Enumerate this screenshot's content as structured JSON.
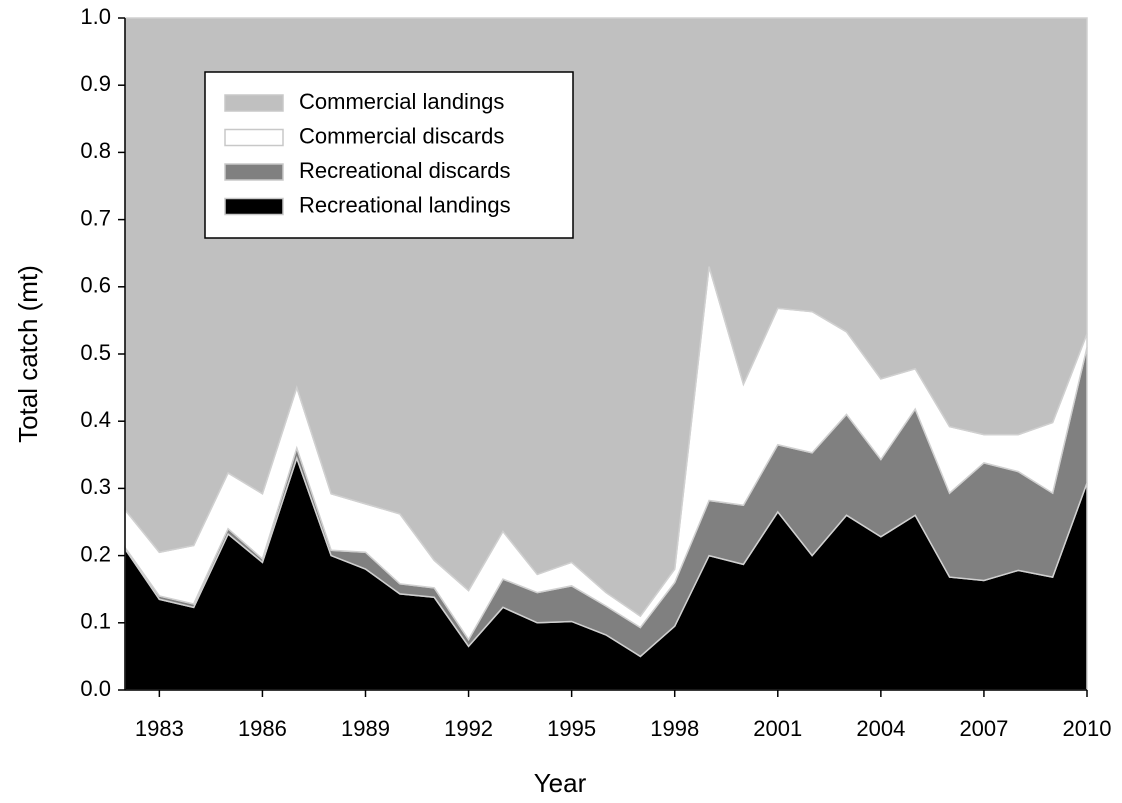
{
  "chart_data": {
    "type": "stacked_area",
    "x_label": "Year",
    "y_label": "Total catch (mt)",
    "x": [
      1982,
      1983,
      1984,
      1985,
      1986,
      1987,
      1988,
      1989,
      1990,
      1991,
      1992,
      1993,
      1994,
      1995,
      1996,
      1997,
      1998,
      1999,
      2000,
      2001,
      2002,
      2003,
      2004,
      2005,
      2006,
      2007,
      2008,
      2009,
      2010
    ],
    "xlim": [
      1982,
      2010
    ],
    "xticks": [
      1983,
      1986,
      1989,
      1992,
      1995,
      1998,
      2001,
      2004,
      2007,
      2010
    ],
    "ylim": [
      0,
      1
    ],
    "yticks": [
      {
        "value": 0,
        "label": "0.0"
      },
      0.1,
      0.2,
      0.3,
      0.4,
      0.5,
      0.6,
      0.7,
      0.8,
      0.9,
      {
        "value": 1,
        "label": "1.0"
      }
    ],
    "series": [
      {
        "name": "Recreational landings",
        "color": "#000000",
        "values": [
          0.21,
          0.135,
          0.123,
          0.232,
          0.19,
          0.345,
          0.2,
          0.18,
          0.143,
          0.138,
          0.065,
          0.123,
          0.1,
          0.102,
          0.082,
          0.05,
          0.095,
          0.2,
          0.187,
          0.265,
          0.2,
          0.26,
          0.228,
          0.26,
          0.168,
          0.163,
          0.178,
          0.168,
          0.308
        ]
      },
      {
        "name": "Recreational discards",
        "color": "#808080",
        "values": [
          0.002,
          0.005,
          0.005,
          0.008,
          0.005,
          0.015,
          0.008,
          0.025,
          0.015,
          0.014,
          0.01,
          0.042,
          0.045,
          0.053,
          0.043,
          0.043,
          0.065,
          0.082,
          0.088,
          0.1,
          0.153,
          0.15,
          0.115,
          0.158,
          0.125,
          0.175,
          0.147,
          0.125,
          0.202
        ]
      },
      {
        "name": "Commercial discards",
        "color": "#ffffff",
        "values": [
          0.056,
          0.065,
          0.087,
          0.083,
          0.097,
          0.09,
          0.084,
          0.072,
          0.104,
          0.041,
          0.073,
          0.071,
          0.027,
          0.035,
          0.02,
          0.017,
          0.02,
          0.348,
          0.18,
          0.203,
          0.21,
          0.123,
          0.12,
          0.06,
          0.099,
          0.042,
          0.055,
          0.105,
          0.02
        ]
      },
      {
        "name": "Commercial landings",
        "color": "#c0c0c0",
        "values": [
          0.732,
          0.795,
          0.785,
          0.677,
          0.708,
          0.55,
          0.708,
          0.723,
          0.738,
          0.807,
          0.852,
          0.764,
          0.828,
          0.81,
          0.855,
          0.89,
          0.82,
          0.37,
          0.545,
          0.432,
          0.437,
          0.467,
          0.537,
          0.522,
          0.608,
          0.62,
          0.62,
          0.602,
          0.47
        ]
      }
    ],
    "legend": "upper left"
  }
}
